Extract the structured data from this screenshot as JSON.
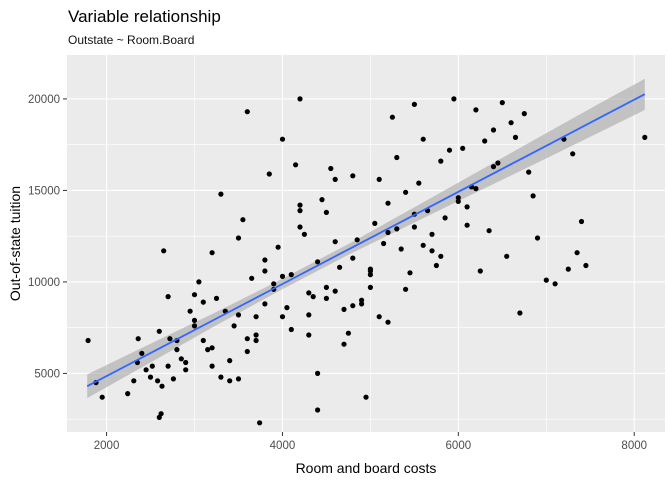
{
  "chart_data": {
    "type": "scatter",
    "title": "Variable relationship",
    "subtitle": "Outstate ~ Room.Board",
    "xlabel": "Room and board costs",
    "ylabel": "Out-of-state tuition",
    "xlim": [
      1550,
      8350
    ],
    "ylim": [
      1800,
      22400
    ],
    "x_ticks": [
      2000,
      4000,
      6000,
      8000
    ],
    "y_ticks": [
      5000,
      10000,
      15000,
      20000
    ],
    "grid": true,
    "background": "#EBEBEB",
    "point_color": "#000000",
    "fit": {
      "method": "lm",
      "color": "#3366FF",
      "ribbon_color": "#A6A6A6",
      "x": [
        1780,
        2500,
        3250,
        4000,
        4750,
        5500,
        6250,
        7000,
        7650,
        8120
      ],
      "y": [
        4300,
        6112,
        8000,
        9888,
        11776,
        13665,
        15553,
        17441,
        19077,
        20260
      ],
      "ci_lower": [
        3650,
        5600,
        7640,
        9610,
        11480,
        13250,
        15000,
        16750,
        18280,
        19400
      ],
      "ci_upper": [
        4950,
        6620,
        8360,
        10170,
        12070,
        14080,
        16100,
        18130,
        19870,
        21100
      ]
    },
    "points": {
      "x": [
        1790,
        1880,
        1950,
        2240,
        2310,
        2360,
        2350,
        2400,
        2450,
        2500,
        2520,
        2580,
        2600,
        2620,
        2630,
        2650,
        2700,
        2720,
        2760,
        2800,
        2850,
        2900,
        2950,
        3000,
        3050,
        3100,
        3150,
        3200,
        3250,
        3300,
        3350,
        3400,
        3450,
        3500,
        3550,
        3600,
        3650,
        3700,
        3740,
        3800,
        3850,
        3900,
        3950,
        4000,
        4050,
        4100,
        4150,
        4200,
        4250,
        4300,
        4350,
        4400,
        4450,
        4500,
        4550,
        4600,
        4650,
        4700,
        4750,
        4800,
        4850,
        4900,
        4950,
        5000,
        5050,
        5100,
        5150,
        5200,
        5250,
        5300,
        5350,
        5400,
        5450,
        5500,
        5550,
        5600,
        5650,
        5700,
        5750,
        5800,
        5850,
        5900,
        5950,
        6000,
        6050,
        6100,
        6150,
        6200,
        6250,
        6300,
        6350,
        6400,
        6450,
        6500,
        6550,
        6600,
        6650,
        6700,
        6750,
        6800,
        6850,
        6900,
        7000,
        7100,
        7200,
        7250,
        7300,
        7350,
        7400,
        7450,
        8120,
        2700,
        3000,
        3200,
        3500,
        3600,
        3800,
        4000,
        4100,
        4200,
        4300,
        4400,
        4600,
        4800,
        5000,
        5200,
        5400,
        5500,
        5600,
        5800,
        6000,
        6200,
        6400,
        4200,
        4800,
        5200,
        3300,
        3900,
        4500,
        5100,
        4700,
        4300,
        3700,
        3100,
        2900,
        2600,
        4900,
        5300,
        5700,
        6100,
        3600,
        3800,
        4200,
        4600,
        5000,
        3400,
        3200,
        3000,
        2800,
        4400,
        4000,
        4500,
        5000,
        5500,
        3700,
        3500
      ],
      "y": [
        6800,
        4500,
        3700,
        3900,
        4600,
        6900,
        5600,
        6100,
        5200,
        4800,
        5400,
        4600,
        2600,
        2800,
        4300,
        11700,
        5400,
        6900,
        4700,
        6300,
        5800,
        5200,
        8400,
        7900,
        10000,
        6800,
        6300,
        11600,
        9100,
        4800,
        8400,
        5700,
        7600,
        12400,
        13400,
        19300,
        10200,
        8100,
        2300,
        11200,
        15900,
        9600,
        11900,
        17800,
        8600,
        10400,
        16400,
        20000,
        12600,
        8200,
        9200,
        3000,
        14500,
        13800,
        16200,
        9500,
        10800,
        6600,
        7200,
        15800,
        12300,
        9000,
        3700,
        10700,
        13200,
        15600,
        12100,
        14300,
        19000,
        16800,
        11800,
        14900,
        10500,
        19700,
        15400,
        17800,
        13900,
        12600,
        10900,
        16600,
        13500,
        17200,
        20000,
        14600,
        17300,
        13100,
        15200,
        19400,
        10600,
        17700,
        12800,
        18300,
        16500,
        19800,
        11400,
        18700,
        17900,
        8300,
        19200,
        16000,
        14700,
        12400,
        10100,
        9900,
        17800,
        10700,
        17000,
        11600,
        13300,
        10900,
        17900,
        9200,
        7600,
        5400,
        8200,
        6900,
        8800,
        10300,
        7400,
        13000,
        9400,
        11100,
        12200,
        8700,
        10600,
        7800,
        9600,
        13700,
        12000,
        11400,
        14400,
        15100,
        16300,
        13900,
        11300,
        12700,
        14800,
        9900,
        9100,
        8100,
        8500,
        7100,
        6800,
        8900,
        5600,
        7300,
        8800,
        12900,
        11700,
        14100,
        6200,
        10600,
        14200,
        15600,
        9700,
        4600,
        6400,
        9300,
        6800,
        5000,
        8100,
        9700,
        10400,
        13000,
        7100,
        4700
      ]
    }
  }
}
